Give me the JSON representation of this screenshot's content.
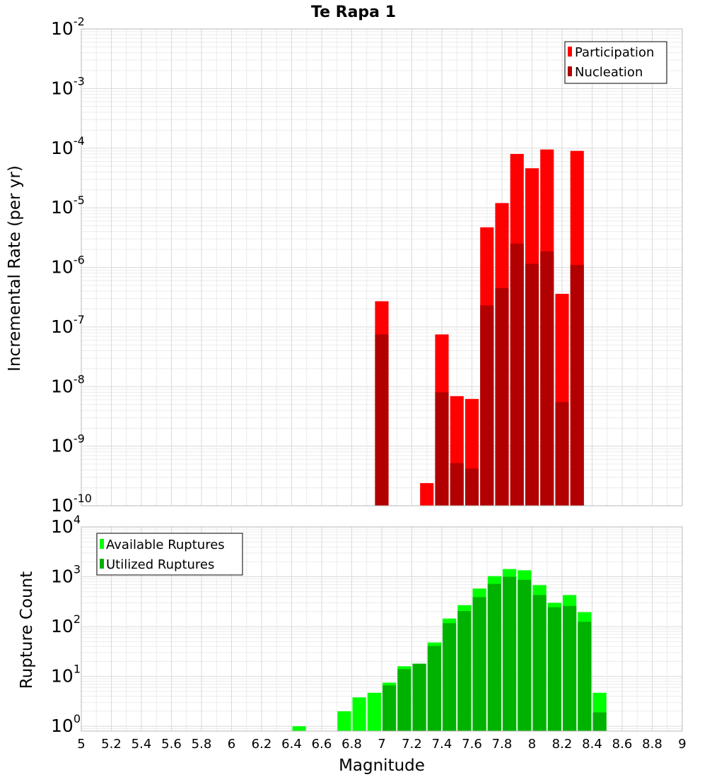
{
  "chart_data": [
    {
      "type": "bar",
      "title": "Te Rapa 1",
      "xlabel": "",
      "ylabel": "Incremental Rate (per yr)",
      "xlim": [
        5,
        9
      ],
      "ylim": [
        1e-10,
        0.01
      ],
      "yscale": "log",
      "grid": true,
      "legend_position": "top-right",
      "bar_width": 0.09,
      "x": [
        7.0,
        7.3,
        7.4,
        7.5,
        7.6,
        7.7,
        7.8,
        7.9,
        8.0,
        8.1,
        8.2,
        8.3
      ],
      "series": [
        {
          "name": "Participation",
          "color": "#ff0000",
          "values": [
            2.7e-07,
            2.4e-10,
            7.5e-08,
            6.9e-09,
            6.2e-09,
            4.7e-06,
            1.2e-05,
            8e-05,
            4.6e-05,
            9.5e-05,
            3.6e-07,
            9e-05
          ]
        },
        {
          "name": "Nucleation",
          "color": "#b20000",
          "values": [
            7.5e-08,
            null,
            8e-09,
            5.2e-10,
            4.2e-10,
            2.3e-07,
            4.5e-07,
            2.5e-06,
            1.15e-06,
            1.85e-06,
            5.5e-09,
            1.1e-06
          ]
        }
      ]
    },
    {
      "type": "bar",
      "title": "",
      "xlabel": "Magnitude",
      "ylabel": "Rupture Count",
      "xlim": [
        5,
        9
      ],
      "ylim": [
        0.8,
        10000
      ],
      "yscale": "log",
      "grid": true,
      "legend_position": "top-left",
      "bar_width": 0.09,
      "x": [
        6.45,
        6.75,
        6.85,
        6.95,
        7.05,
        7.15,
        7.25,
        7.35,
        7.45,
        7.55,
        7.65,
        7.75,
        7.85,
        7.95,
        8.05,
        8.15,
        8.25,
        8.35,
        8.45
      ],
      "series": [
        {
          "name": "Available Ruptures",
          "color": "#00ff00",
          "values": [
            1,
            2,
            3.8,
            4.7,
            7.5,
            16,
            18,
            48,
            145,
            270,
            580,
            1030,
            1430,
            1350,
            680,
            300,
            430,
            195,
            4.7
          ]
        },
        {
          "name": "Utilized Ruptures",
          "color": "#00b200",
          "values": [
            null,
            null,
            null,
            null,
            6.6,
            14,
            18,
            41,
            117,
            205,
            390,
            720,
            1000,
            870,
            430,
            245,
            260,
            125,
            1.9
          ]
        }
      ],
      "x_ticks": [
        "5",
        "5.2",
        "5.4",
        "5.6",
        "5.8",
        "6",
        "6.2",
        "6.4",
        "6.6",
        "6.8",
        "7",
        "7.2",
        "7.4",
        "7.6",
        "7.8",
        "8",
        "8.2",
        "8.4",
        "8.6",
        "8.8",
        "9"
      ]
    }
  ]
}
